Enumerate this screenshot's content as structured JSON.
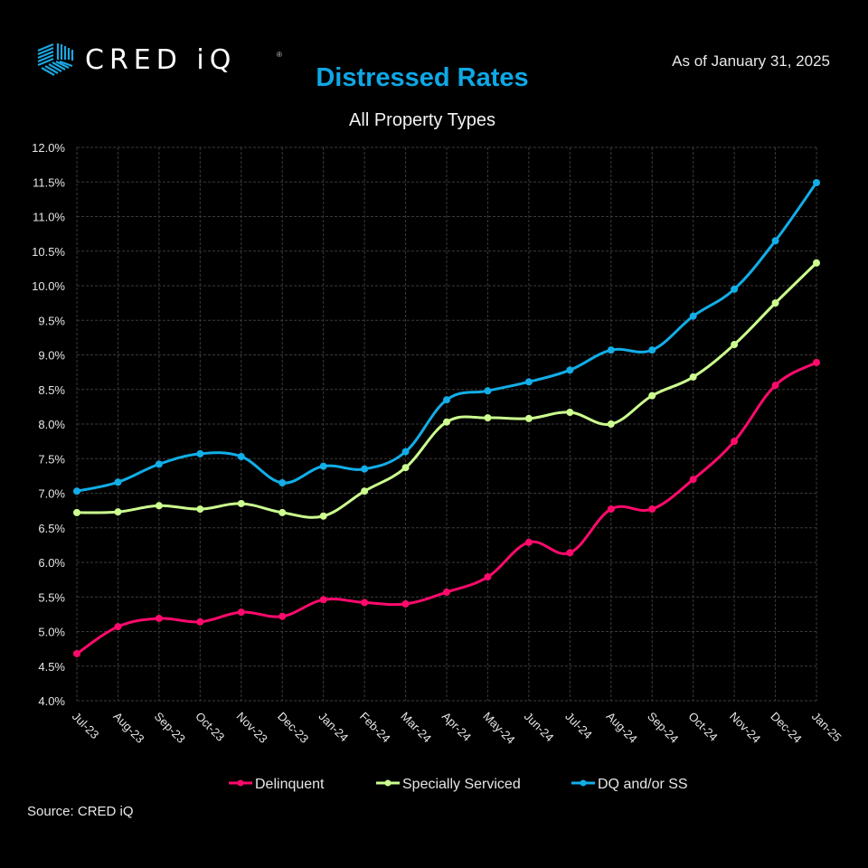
{
  "brand": {
    "logo_icon": "hexagon-stripes-icon",
    "name": "CRED iQ",
    "registered_mark": "®"
  },
  "header": {
    "title": "Distressed Rates",
    "subtitle": "All Property Types",
    "as_of": "As of January 31, 2025"
  },
  "footer": {
    "source": "Source:  CRED iQ"
  },
  "chart_data": {
    "type": "line",
    "title": "Distressed Rates",
    "subtitle": "All Property Types",
    "xlabel": "",
    "ylabel": "",
    "ylim": [
      4.0,
      12.0
    ],
    "y_ticks": [
      "4.0%",
      "4.5%",
      "5.0%",
      "5.5%",
      "6.0%",
      "6.5%",
      "7.0%",
      "7.5%",
      "8.0%",
      "8.5%",
      "9.0%",
      "9.5%",
      "10.0%",
      "10.5%",
      "11.0%",
      "11.5%",
      "12.0%"
    ],
    "grid": true,
    "legend_position": "bottom",
    "categories": [
      "Jul-23",
      "Aug-23",
      "Sep-23",
      "Oct-23",
      "Nov-23",
      "Dec-23",
      "Jan-24",
      "Feb-24",
      "Mar-24",
      "Apr-24",
      "May-24",
      "Jun-24",
      "Jul-24",
      "Aug-24",
      "Sep-24",
      "Oct-24",
      "Nov-24",
      "Dec-24",
      "Jan-25"
    ],
    "series": [
      {
        "name": "Delinquent",
        "color": "#ff0a6c",
        "values": [
          4.68,
          5.07,
          5.19,
          5.14,
          5.28,
          5.22,
          5.46,
          5.42,
          5.4,
          5.57,
          5.79,
          6.29,
          6.14,
          6.77,
          6.77,
          7.2,
          7.75,
          8.56,
          8.89
        ]
      },
      {
        "name": "Specially Serviced",
        "color": "#ccff8f",
        "values": [
          6.72,
          6.73,
          6.82,
          6.77,
          6.85,
          6.72,
          6.67,
          7.03,
          7.37,
          8.03,
          8.09,
          8.08,
          8.17,
          8.0,
          8.41,
          8.68,
          9.15,
          9.75,
          10.33
        ]
      },
      {
        "name": "DQ and/or SS",
        "color": "#12aee8",
        "values": [
          7.03,
          7.16,
          7.42,
          7.57,
          7.53,
          7.15,
          7.39,
          7.35,
          7.6,
          8.35,
          8.48,
          8.61,
          8.78,
          9.07,
          9.07,
          9.56,
          9.95,
          10.65,
          11.49
        ]
      }
    ]
  }
}
